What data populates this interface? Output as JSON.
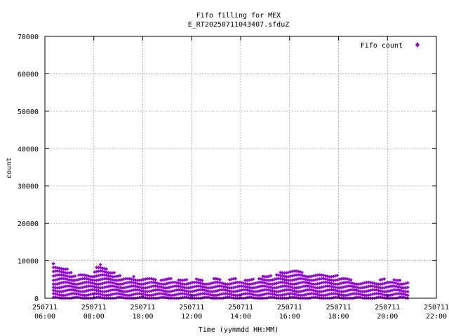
{
  "chart_data": {
    "type": "scatter",
    "title": "Fifo filling for MEX",
    "subtitle": "E_RT20250711043407.sfduZ",
    "xlabel": "Time (yymmdd HH:MM)",
    "ylabel": "count",
    "legend": "top-right",
    "grid": true,
    "series_color": "#9400d3",
    "xlim_hours": [
      6,
      22
    ],
    "ylim": [
      0,
      70000
    ],
    "yticks": [
      0,
      10000,
      20000,
      30000,
      40000,
      50000,
      60000,
      70000
    ],
    "xticks": [
      {
        "date": "250711",
        "time": "06:00",
        "hour": 6
      },
      {
        "date": "250711",
        "time": "08:00",
        "hour": 8
      },
      {
        "date": "250711",
        "time": "10:00",
        "hour": 10
      },
      {
        "date": "250711",
        "time": "12:00",
        "hour": 12
      },
      {
        "date": "250711",
        "time": "14:00",
        "hour": 14
      },
      {
        "date": "250711",
        "time": "16:00",
        "hour": 16
      },
      {
        "date": "250711",
        "time": "18:00",
        "hour": 18
      },
      {
        "date": "250711",
        "time": "20:00",
        "hour": 20
      },
      {
        "date": "250711",
        "time": "22:00",
        "hour": 22
      }
    ],
    "series": [
      {
        "name": "Fifo count",
        "data_range": [
          "250711 06:20",
          "250711 20:50"
        ],
        "x_sample_hours": [
          6.7,
          6.9,
          7.2,
          7.5,
          7.8,
          8.0,
          8.2,
          8.5,
          8.7,
          9.0,
          9.5,
          10.0,
          10.5,
          11.0,
          11.5,
          12.0,
          12.5,
          13.0,
          13.5,
          14.0,
          14.5,
          15.0,
          15.5,
          16.0,
          16.5,
          17.0,
          17.5,
          18.0,
          18.5,
          19.0,
          19.5,
          20.0,
          20.5,
          20.9
        ],
        "upper_envelope": [
          9000,
          8000,
          6500,
          6000,
          7000,
          7500,
          8500,
          8800,
          7500,
          6000,
          5600,
          5500,
          5300,
          5200,
          5200,
          5000,
          5000,
          5000,
          5000,
          5000,
          5000,
          6000,
          6500,
          7500,
          7000,
          6500,
          6500,
          6500,
          5000,
          4500,
          4500,
          5000,
          5000,
          4500
        ]
      }
    ]
  }
}
